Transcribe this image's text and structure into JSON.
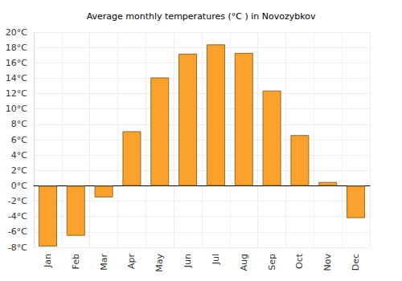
{
  "chart_data": {
    "type": "bar",
    "title": "Average monthly temperatures (°C ) in Novozybkov",
    "categories": [
      "Jan",
      "Feb",
      "Mar",
      "Apr",
      "May",
      "Jun",
      "Jul",
      "Aug",
      "Sep",
      "Oct",
      "Nov",
      "Dec"
    ],
    "values": [
      -7.9,
      -6.5,
      -1.5,
      7.1,
      14.1,
      17.2,
      18.4,
      17.3,
      12.4,
      6.6,
      0.5,
      -4.2
    ],
    "color": "#fba22c",
    "ylim": [
      -8,
      20
    ],
    "yticks": [
      {
        "value": -8,
        "label": "-8°C"
      },
      {
        "value": -6,
        "label": "-6°C"
      },
      {
        "value": -4,
        "label": "-4°C"
      },
      {
        "value": -2,
        "label": "-2°C"
      },
      {
        "value": 0,
        "label": "0°C"
      },
      {
        "value": 2,
        "label": "2°C"
      },
      {
        "value": 4,
        "label": "4°C"
      },
      {
        "value": 6,
        "label": "6°C"
      },
      {
        "value": 8,
        "label": "8°C"
      },
      {
        "value": 10,
        "label": "10°C"
      },
      {
        "value": 12,
        "label": "12°C"
      },
      {
        "value": 14,
        "label": "14°C"
      },
      {
        "value": 16,
        "label": "16°C"
      },
      {
        "value": 18,
        "label": "18°C"
      },
      {
        "value": 20,
        "label": "20°C"
      }
    ],
    "grid": true
  }
}
